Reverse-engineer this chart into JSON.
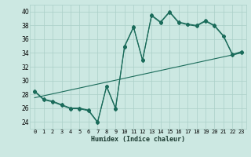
{
  "xlabel": "Humidex (Indice chaleur)",
  "bg_color": "#cce8e2",
  "grid_color": "#aacfc8",
  "line_color": "#1a6b5a",
  "xlim": [
    -0.5,
    23.5
  ],
  "ylim": [
    23,
    41
  ],
  "xticks": [
    0,
    1,
    2,
    3,
    4,
    5,
    6,
    7,
    8,
    9,
    10,
    11,
    12,
    13,
    14,
    15,
    16,
    17,
    18,
    19,
    20,
    21,
    22,
    23
  ],
  "yticks": [
    24,
    26,
    28,
    30,
    32,
    34,
    36,
    38,
    40
  ],
  "line1_x": [
    0,
    1,
    2,
    3,
    4,
    5,
    6,
    7,
    8,
    9,
    10,
    11,
    12,
    13,
    14,
    15,
    16,
    17,
    18,
    19,
    20,
    21,
    22,
    23
  ],
  "line1_y": [
    28.5,
    27.3,
    27.0,
    26.5,
    26.0,
    26.0,
    25.7,
    24.0,
    29.2,
    26.0,
    35.0,
    37.8,
    33.0,
    39.5,
    38.5,
    40.0,
    38.5,
    38.2,
    38.0,
    38.7,
    38.0,
    36.5,
    33.8,
    34.2
  ],
  "line2_x": [
    0,
    1,
    2,
    3,
    4,
    5,
    6,
    7,
    8,
    9,
    10,
    11,
    12,
    13,
    14,
    15,
    16,
    17,
    18,
    19,
    20,
    21,
    22,
    23
  ],
  "line2_y": [
    28.4,
    27.2,
    26.9,
    26.4,
    25.9,
    25.9,
    25.6,
    23.9,
    29.1,
    25.9,
    34.9,
    37.7,
    32.9,
    39.4,
    38.4,
    39.9,
    38.4,
    38.1,
    37.9,
    38.6,
    37.9,
    36.4,
    33.7,
    34.1
  ],
  "line3_x": [
    0,
    23
  ],
  "line3_y": [
    27.5,
    34.0
  ]
}
